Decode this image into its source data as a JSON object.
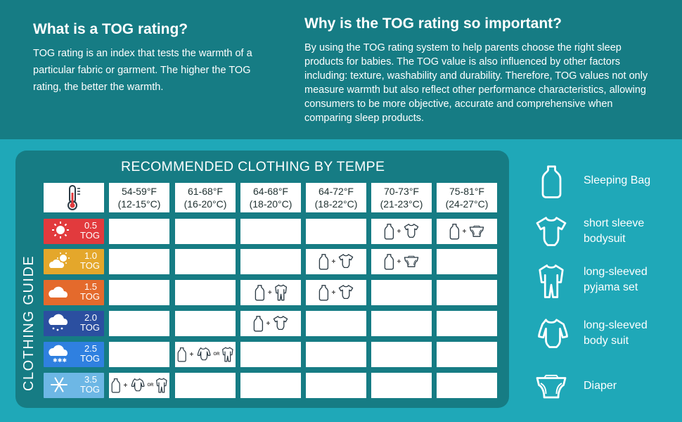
{
  "intro": {
    "what_title": "What is a TOG rating?",
    "what_body": "TOG rating is an index that tests the warmth of a particular fabric or garment. The higher the TOG rating, the better the warmth.",
    "why_title": "Why is the TOG rating so important?",
    "why_body": "By using the TOG rating system to help parents choose the right sleep products for babies. The TOG value is also influenced by other factors including: texture, washability and durability. Therefore, TOG values not only measure warmth but also reflect other performance characteristics, allowing consumers to be more objective, accurate and comprehensive when comparing sleep products."
  },
  "table": {
    "title": "RECOMMENDED CLOTHING BY TEMPE",
    "side_title": "CLOTHING GUIDE",
    "header_icon": "thermometer-icon",
    "columns": [
      {
        "f": "54-59°F",
        "c": "(12-15°C)"
      },
      {
        "f": "61-68°F",
        "c": "(16-20°C)"
      },
      {
        "f": "64-68°F",
        "c": "(18-20°C)"
      },
      {
        "f": "64-72°F",
        "c": "(18-22°C)"
      },
      {
        "f": "70-73°F",
        "c": "(21-23°C)"
      },
      {
        "f": "75-81°F",
        "c": "(24-27°C)"
      }
    ],
    "rows": [
      {
        "value": "0.5",
        "unit": "TOG",
        "color": "#e23a3d",
        "icon": "sun-icon",
        "cells": [
          [],
          [],
          [],
          [],
          [
            "sleeping-bag",
            "short-sleeve-bodysuit"
          ],
          [
            "sleeping-bag",
            "diaper"
          ]
        ]
      },
      {
        "value": "1.0",
        "unit": "TOG",
        "color": "#e4a72b",
        "icon": "sun-cloud-icon",
        "cells": [
          [],
          [],
          [],
          [
            "sleeping-bag",
            "short-sleeve-bodysuit"
          ],
          [
            "sleeping-bag",
            "diaper"
          ],
          []
        ]
      },
      {
        "value": "1.5",
        "unit": "TOG",
        "color": "#e46a2c",
        "icon": "cloud-icon",
        "cells": [
          [],
          [],
          [
            "sleeping-bag",
            "pyjama-set"
          ],
          [
            "sleeping-bag",
            "short-sleeve-bodysuit"
          ],
          [],
          []
        ]
      },
      {
        "value": "2.0",
        "unit": "TOG",
        "color": "#2b4fa0",
        "icon": "rain-cloud-icon",
        "cells": [
          [],
          [],
          [
            "sleeping-bag",
            "short-sleeve-bodysuit"
          ],
          [],
          [],
          []
        ]
      },
      {
        "value": "2.5",
        "unit": "TOG",
        "color": "#2f80e0",
        "icon": "snow-cloud-icon",
        "cells": [
          [],
          [
            "sleeping-bag",
            "long-sleeve-bodysuit",
            "pyjama-set"
          ],
          [],
          [],
          [],
          []
        ]
      },
      {
        "value": "3.5",
        "unit": "TOG",
        "color": "#6db7e5",
        "icon": "snowflake-icon",
        "cells": [
          [
            "sleeping-bag",
            "long-sleeve-bodysuit",
            "pyjama-set"
          ],
          [],
          [],
          [],
          [],
          []
        ]
      }
    ],
    "plus_sign": "+",
    "or_word": "OR"
  },
  "legend": [
    {
      "icon": "sleeping-bag-icon",
      "label": "Sleeping Bag"
    },
    {
      "icon": "short-sleeve-bodysuit-icon",
      "label": "short sleeve\nbodysuit"
    },
    {
      "icon": "pyjama-set-icon",
      "label": "long-sleeved\npyjama set"
    },
    {
      "icon": "long-sleeve-bodysuit-icon",
      "label": "long-sleeved\nbody suit"
    },
    {
      "icon": "diaper-icon",
      "label": "Diaper"
    }
  ]
}
